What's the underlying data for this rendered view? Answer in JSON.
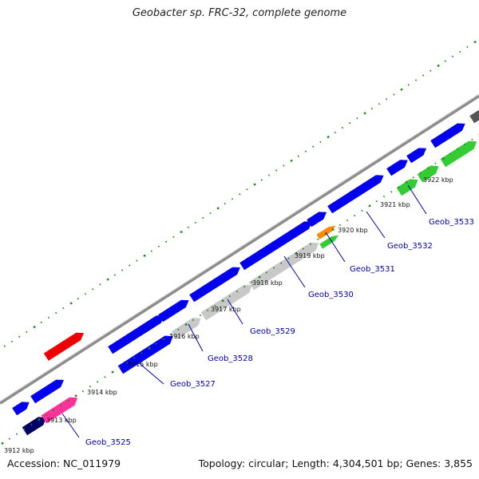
{
  "title": "Geobacter sp. FRC-32, complete genome",
  "accession_text": "Accession: NC_011979",
  "summary_text": "Topology: circular; Length: 4,304,501 bp; Genes: 3,855",
  "colors": {
    "backbone": "#8c8c8c",
    "tick_green": "#1a8a1a",
    "label_blue": "#0000aa",
    "gene_blue": "#0000ee",
    "gene_navy": "#000066",
    "gene_red": "#ee0000",
    "gene_gray": "#c8c8c8",
    "gene_green": "#33cc33",
    "gene_orange": "#ff8800",
    "gene_pink": "#ff3399",
    "gene_darkgray": "#555555"
  },
  "ticks": [
    {
      "label": "3912 kbp"
    },
    {
      "label": "3913 kbp"
    },
    {
      "label": "3914 kbp"
    },
    {
      "label": "3915 kbp"
    },
    {
      "label": "3916 kbp"
    },
    {
      "label": "3917 kbp"
    },
    {
      "label": "3918 kbp"
    },
    {
      "label": "3919 kbp"
    },
    {
      "label": "3920 kbp"
    },
    {
      "label": "3921 kbp"
    },
    {
      "label": "3922 kbp"
    }
  ],
  "gene_labels": [
    {
      "name": "Geob_3525"
    },
    {
      "name": "Geob_3527"
    },
    {
      "name": "Geob_3528"
    },
    {
      "name": "Geob_3529"
    },
    {
      "name": "Geob_3530"
    },
    {
      "name": "Geob_3531"
    },
    {
      "name": "Geob_3532"
    },
    {
      "name": "Geob_3533"
    }
  ]
}
